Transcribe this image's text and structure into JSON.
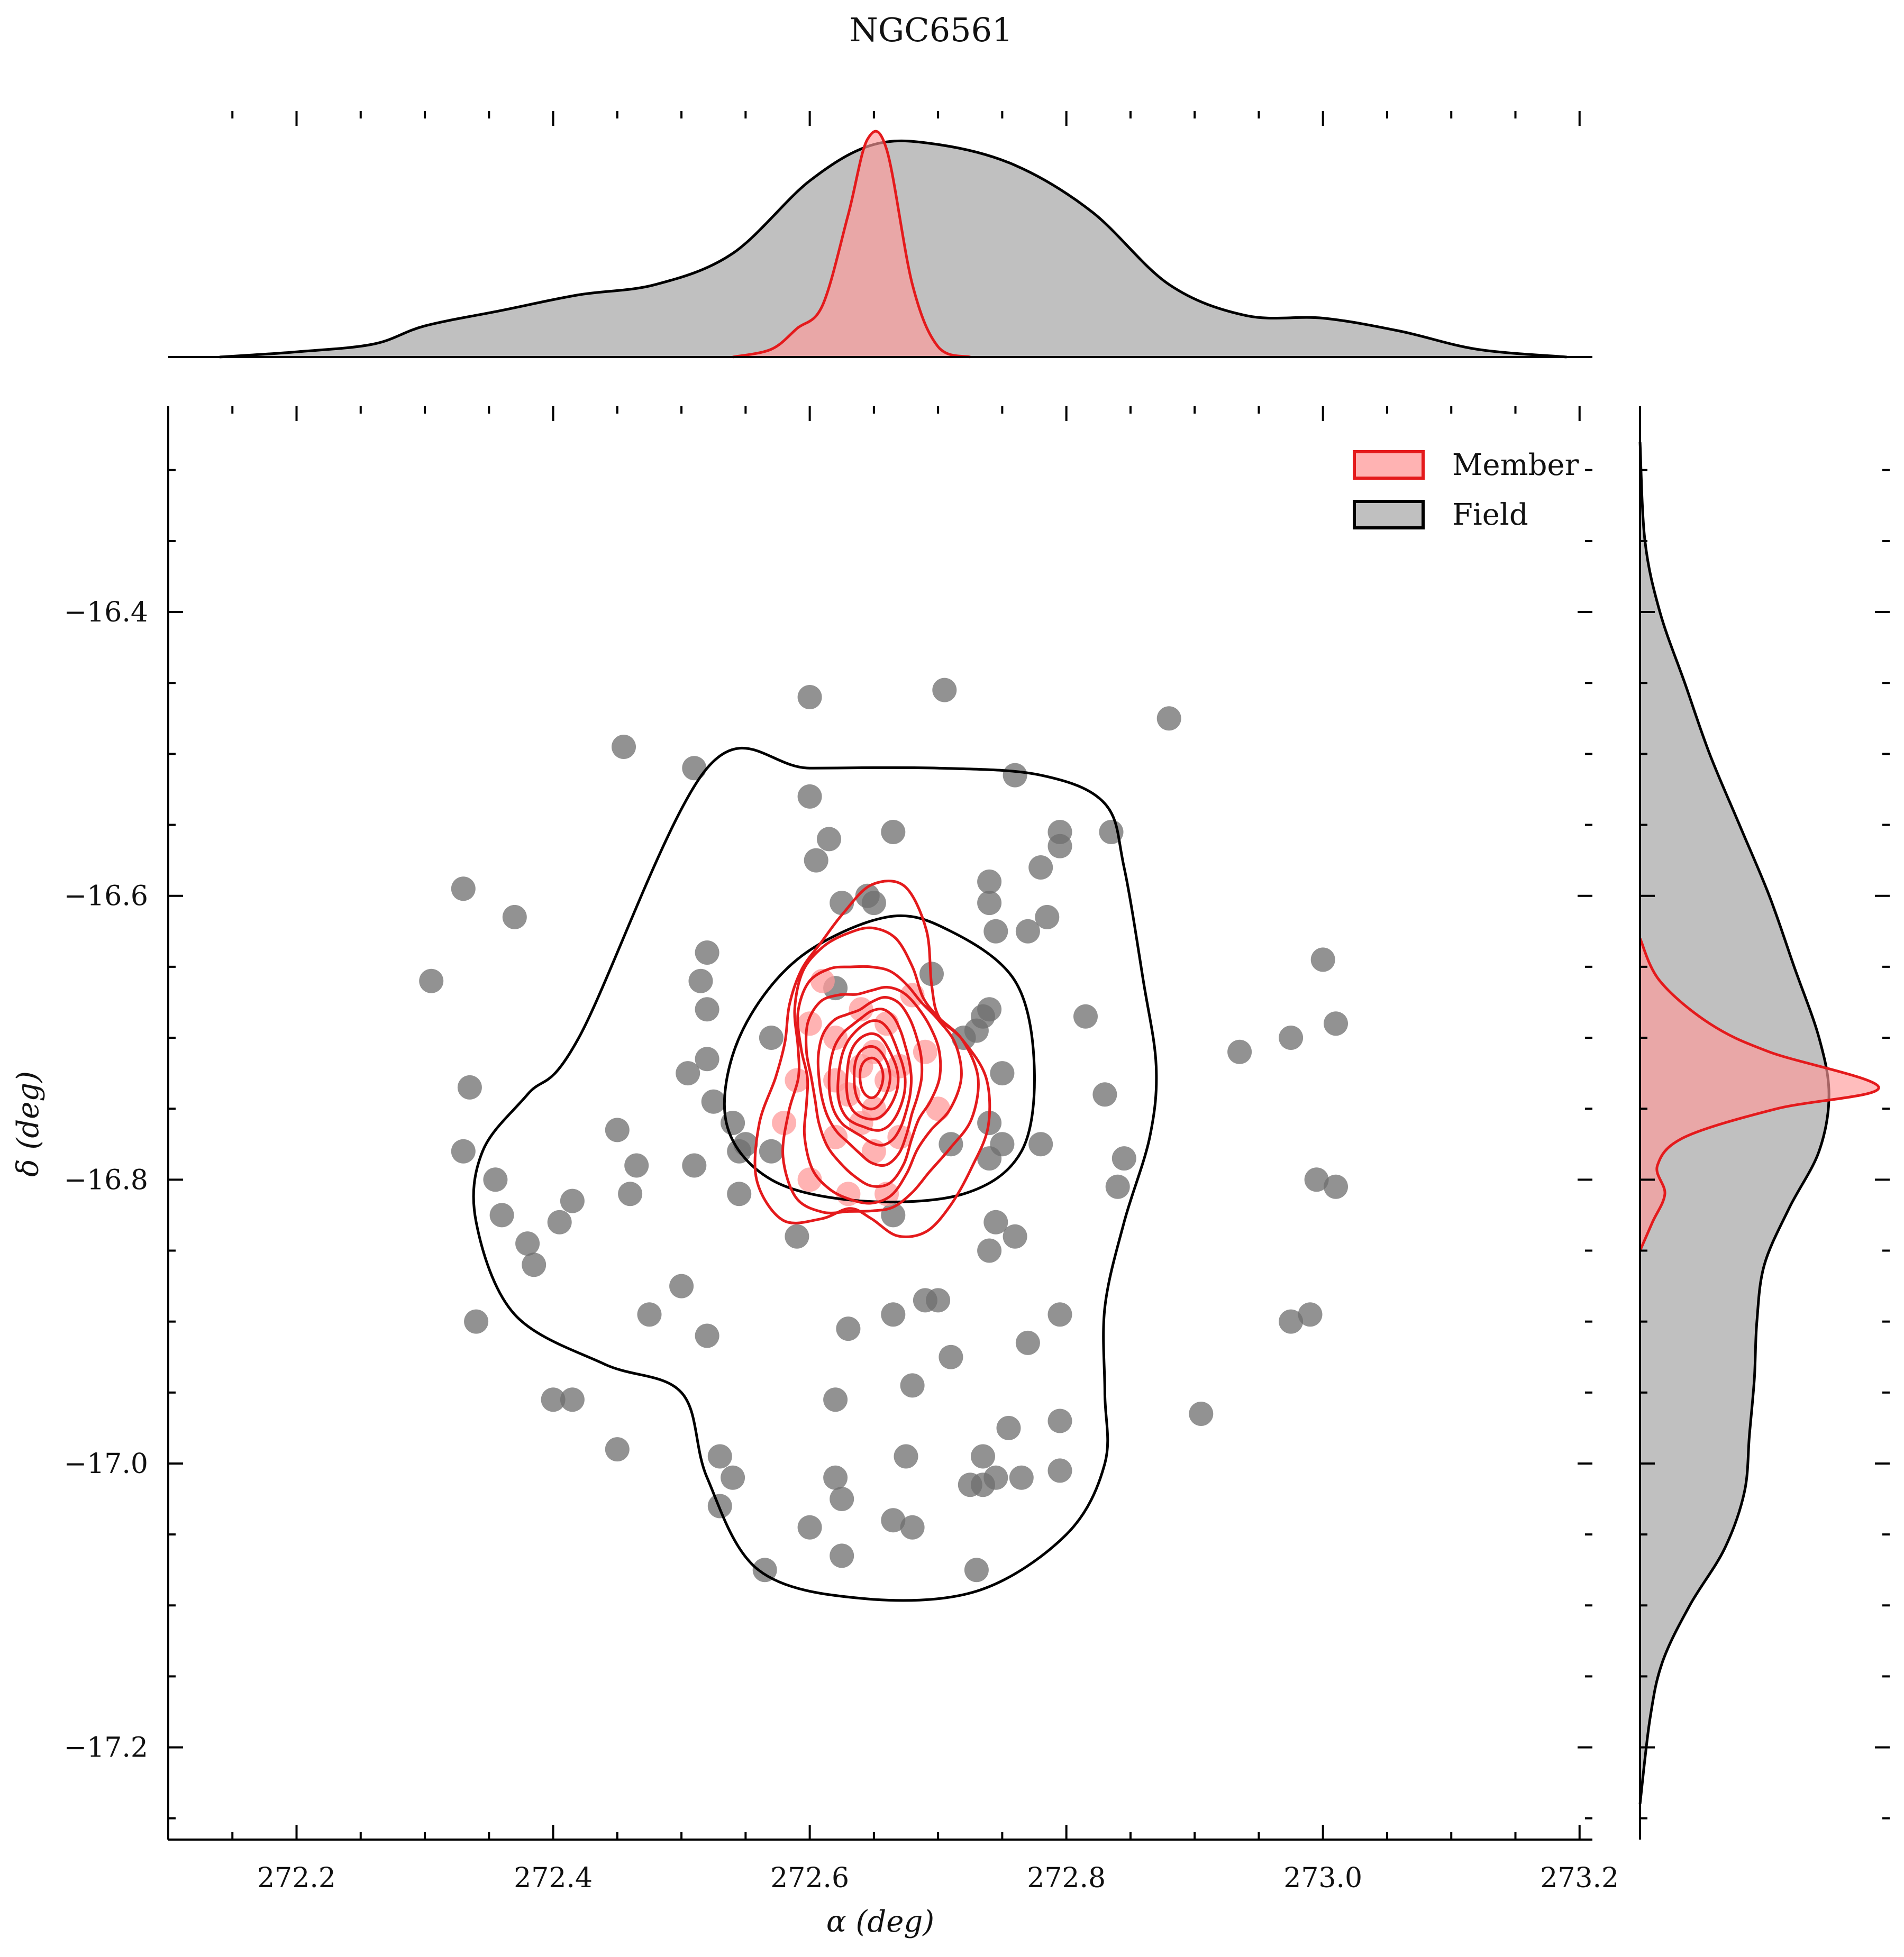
{
  "chart_data": {
    "type": "scatter",
    "title": "NGC6561",
    "xlabel": "α (deg)",
    "ylabel": "δ (deg)",
    "xlim": [
      272.1,
      273.21
    ],
    "ylim": [
      -17.265,
      -16.255
    ],
    "x_ticks": [
      272.2,
      272.4,
      272.6,
      272.8,
      273.0,
      273.2
    ],
    "x_tick_labels": [
      "272.2",
      "272.4",
      "272.6",
      "272.8",
      "273.0",
      "273.2"
    ],
    "y_ticks": [
      -16.4,
      -16.6,
      -16.8,
      -17.0,
      -17.2
    ],
    "y_tick_labels": [
      "−16.4",
      "−16.6",
      "−16.8",
      "−17.0",
      "−17.2"
    ],
    "grid": false,
    "legend_position": "top-right",
    "colors": {
      "member_edge": "#e41a1c",
      "member_fill": "#ff9999",
      "field_edge": "#000000",
      "field_fill": "#9e9e9e",
      "field_points": "#6e6e6e"
    },
    "series": [
      {
        "name": "Member",
        "points": [
          [
            272.64,
            -16.72
          ],
          [
            272.65,
            -16.71
          ],
          [
            272.66,
            -16.73
          ],
          [
            272.63,
            -16.74
          ],
          [
            272.65,
            -16.75
          ],
          [
            272.67,
            -16.72
          ],
          [
            272.62,
            -16.7
          ],
          [
            272.64,
            -16.68
          ],
          [
            272.66,
            -16.69
          ],
          [
            272.68,
            -16.67
          ],
          [
            272.6,
            -16.69
          ],
          [
            272.59,
            -16.73
          ],
          [
            272.58,
            -16.76
          ],
          [
            272.62,
            -16.77
          ],
          [
            272.67,
            -16.77
          ],
          [
            272.6,
            -16.8
          ],
          [
            272.63,
            -16.81
          ],
          [
            272.66,
            -16.81
          ],
          [
            272.69,
            -16.71
          ],
          [
            272.61,
            -16.66
          ],
          [
            272.7,
            -16.75
          ],
          [
            272.65,
            -16.78
          ],
          [
            272.62,
            -16.73
          ],
          [
            272.64,
            -16.76
          ]
        ],
        "kde_x": {
          "x": [
            272.54,
            272.57,
            272.59,
            272.61,
            272.63,
            272.645,
            272.66,
            272.68,
            272.7,
            272.725
          ],
          "density": [
            0.0,
            0.03,
            0.11,
            0.2,
            0.55,
            0.84,
            0.8,
            0.28,
            0.04,
            0.0
          ]
        },
        "kde_y": {
          "y": [
            -16.63,
            -16.66,
            -16.69,
            -16.71,
            -16.735,
            -16.75,
            -16.77,
            -16.79,
            -16.81,
            -16.83,
            -16.85
          ],
          "density": [
            0.0,
            0.08,
            0.28,
            0.52,
            0.96,
            0.55,
            0.18,
            0.07,
            0.1,
            0.05,
            0.0
          ]
        }
      },
      {
        "name": "Field",
        "points": [
          [
            272.305,
            -16.66
          ],
          [
            272.33,
            -16.595
          ],
          [
            272.37,
            -16.615
          ],
          [
            272.455,
            -16.495
          ],
          [
            272.51,
            -16.51
          ],
          [
            272.6,
            -16.46
          ],
          [
            272.705,
            -16.455
          ],
          [
            272.88,
            -16.475
          ],
          [
            272.6,
            -16.53
          ],
          [
            272.665,
            -16.555
          ],
          [
            272.605,
            -16.575
          ],
          [
            272.615,
            -16.56
          ],
          [
            272.625,
            -16.605
          ],
          [
            272.645,
            -16.6
          ],
          [
            272.65,
            -16.605
          ],
          [
            272.76,
            -16.515
          ],
          [
            272.795,
            -16.555
          ],
          [
            272.795,
            -16.565
          ],
          [
            272.78,
            -16.58
          ],
          [
            272.74,
            -16.59
          ],
          [
            272.74,
            -16.605
          ],
          [
            272.745,
            -16.625
          ],
          [
            272.77,
            -16.625
          ],
          [
            272.785,
            -16.615
          ],
          [
            272.835,
            -16.555
          ],
          [
            272.52,
            -16.64
          ],
          [
            272.515,
            -16.66
          ],
          [
            272.52,
            -16.68
          ],
          [
            272.505,
            -16.725
          ],
          [
            272.52,
            -16.715
          ],
          [
            272.54,
            -16.76
          ],
          [
            272.545,
            -16.78
          ],
          [
            272.55,
            -16.775
          ],
          [
            272.51,
            -16.79
          ],
          [
            272.545,
            -16.81
          ],
          [
            272.525,
            -16.745
          ],
          [
            272.57,
            -16.7
          ],
          [
            272.57,
            -16.78
          ],
          [
            272.59,
            -16.84
          ],
          [
            272.62,
            -16.665
          ],
          [
            272.695,
            -16.655
          ],
          [
            272.72,
            -16.7
          ],
          [
            272.735,
            -16.685
          ],
          [
            272.74,
            -16.68
          ],
          [
            272.73,
            -16.695
          ],
          [
            272.75,
            -16.725
          ],
          [
            272.74,
            -16.76
          ],
          [
            272.71,
            -16.775
          ],
          [
            272.74,
            -16.785
          ],
          [
            272.75,
            -16.775
          ],
          [
            272.78,
            -16.775
          ],
          [
            272.815,
            -16.685
          ],
          [
            272.83,
            -16.74
          ],
          [
            272.845,
            -16.785
          ],
          [
            272.84,
            -16.805
          ],
          [
            272.745,
            -16.83
          ],
          [
            272.74,
            -16.85
          ],
          [
            272.76,
            -16.84
          ],
          [
            272.665,
            -16.825
          ],
          [
            272.45,
            -16.765
          ],
          [
            272.465,
            -16.79
          ],
          [
            272.46,
            -16.81
          ],
          [
            272.415,
            -16.815
          ],
          [
            272.405,
            -16.83
          ],
          [
            272.38,
            -16.845
          ],
          [
            272.385,
            -16.86
          ],
          [
            272.36,
            -16.825
          ],
          [
            272.355,
            -16.8
          ],
          [
            272.335,
            -16.735
          ],
          [
            272.33,
            -16.78
          ],
          [
            272.34,
            -16.9
          ],
          [
            272.475,
            -16.895
          ],
          [
            272.5,
            -16.875
          ],
          [
            272.52,
            -16.91
          ],
          [
            272.63,
            -16.905
          ],
          [
            272.665,
            -16.895
          ],
          [
            272.69,
            -16.885
          ],
          [
            272.7,
            -16.885
          ],
          [
            272.71,
            -16.925
          ],
          [
            272.77,
            -16.915
          ],
          [
            272.795,
            -16.895
          ],
          [
            272.68,
            -16.945
          ],
          [
            272.62,
            -16.955
          ],
          [
            272.4,
            -16.955
          ],
          [
            272.415,
            -16.955
          ],
          [
            272.45,
            -16.99
          ],
          [
            272.53,
            -16.995
          ],
          [
            272.54,
            -17.01
          ],
          [
            272.53,
            -17.03
          ],
          [
            272.62,
            -17.01
          ],
          [
            272.625,
            -17.025
          ],
          [
            272.675,
            -16.995
          ],
          [
            272.6,
            -17.045
          ],
          [
            272.665,
            -17.04
          ],
          [
            272.68,
            -17.045
          ],
          [
            272.625,
            -17.065
          ],
          [
            272.565,
            -17.075
          ],
          [
            272.755,
            -16.975
          ],
          [
            272.795,
            -16.97
          ],
          [
            272.735,
            -16.995
          ],
          [
            272.745,
            -17.01
          ],
          [
            272.725,
            -17.015
          ],
          [
            272.735,
            -17.015
          ],
          [
            272.765,
            -17.01
          ],
          [
            272.795,
            -17.005
          ],
          [
            272.73,
            -17.075
          ],
          [
            272.905,
            -16.965
          ],
          [
            272.935,
            -16.71
          ],
          [
            272.975,
            -16.7
          ],
          [
            273.0,
            -16.645
          ],
          [
            273.01,
            -16.69
          ],
          [
            272.995,
            -16.8
          ],
          [
            273.01,
            -16.805
          ],
          [
            272.975,
            -16.9
          ],
          [
            272.99,
            -16.895
          ]
        ],
        "kde_x": {
          "x": [
            272.14,
            272.2,
            272.26,
            272.3,
            272.36,
            272.42,
            272.48,
            272.54,
            272.6,
            272.65,
            272.7,
            272.76,
            272.82,
            272.88,
            272.94,
            273.0,
            273.06,
            273.12,
            273.19
          ],
          "density": [
            0.0,
            0.02,
            0.05,
            0.12,
            0.18,
            0.24,
            0.28,
            0.4,
            0.68,
            0.82,
            0.82,
            0.74,
            0.56,
            0.28,
            0.16,
            0.15,
            0.1,
            0.03,
            0.0
          ]
        },
        "kde_y": {
          "y": [
            -16.28,
            -16.35,
            -16.4,
            -16.45,
            -16.5,
            -16.55,
            -16.6,
            -16.65,
            -16.7,
            -16.74,
            -16.78,
            -16.82,
            -16.86,
            -16.9,
            -16.94,
            -16.98,
            -17.02,
            -17.06,
            -17.1,
            -17.14,
            -17.18,
            -17.24
          ],
          "density": [
            0.0,
            0.02,
            0.08,
            0.18,
            0.28,
            0.4,
            0.52,
            0.62,
            0.72,
            0.76,
            0.72,
            0.6,
            0.5,
            0.47,
            0.46,
            0.44,
            0.42,
            0.34,
            0.2,
            0.09,
            0.04,
            0.0
          ]
        }
      }
    ]
  },
  "legend": {
    "member_label": "Member",
    "field_label": "Field"
  }
}
